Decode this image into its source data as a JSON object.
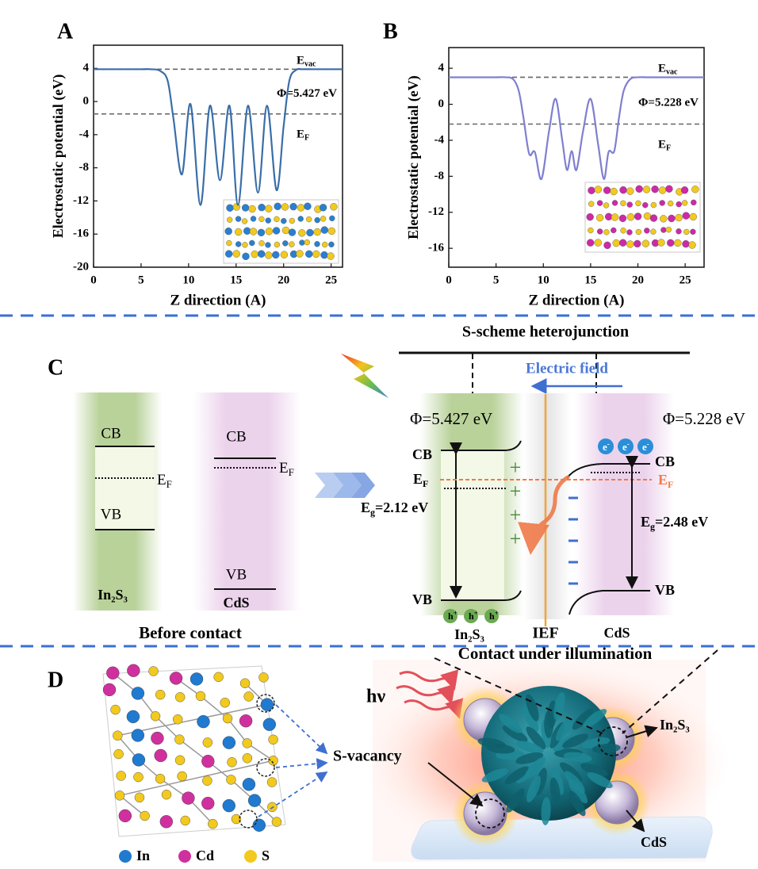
{
  "panel_labels": [
    "A",
    "B",
    "C",
    "D"
  ],
  "chart_data": [
    {
      "type": "line",
      "x_label": "Z direction (A)",
      "y_label": "Electrostatic potential (eV)",
      "x": [
        0,
        1,
        2,
        3,
        4,
        5,
        6,
        7,
        7.8,
        8.4,
        9.3,
        10.2,
        11.25,
        12.25,
        13.3,
        14.3,
        15.2,
        16.25,
        17.3,
        18.25,
        19.25,
        20,
        20.6,
        21.3,
        22,
        23,
        24,
        25,
        26.2
      ],
      "values": [
        3.9,
        3.9,
        3.9,
        3.9,
        3.9,
        3.9,
        3.9,
        3.7,
        2.5,
        -2,
        -8.8,
        -0.3,
        -12.5,
        -0.5,
        -9.5,
        -0.5,
        -12.5,
        -0.5,
        -11,
        -0.5,
        -10.7,
        -3,
        2.5,
        3.8,
        3.9,
        3.9,
        3.9,
        3.9,
        3.9
      ],
      "color": "#3a6ea8",
      "xlim": [
        0,
        26.2
      ],
      "ylim": [
        -20,
        6.8
      ],
      "xticks": [
        0,
        5,
        10,
        15,
        20,
        25
      ],
      "yticks": [
        -20,
        -16,
        -12,
        -8,
        -4,
        0,
        4
      ],
      "reference_lines": [
        {
          "value": 3.9,
          "label": {
            "base": "E",
            "sub": "vac"
          }
        },
        {
          "value": -1.5,
          "label": {
            "base": "E",
            "sub": "F"
          }
        }
      ],
      "annotation": "Φ=5.427 eV"
    },
    {
      "type": "line",
      "x_label": "Z direction (A)",
      "y_label": "Electrostatic potential (eV)",
      "x": [
        0,
        1,
        2,
        3,
        4,
        5,
        6,
        6.8,
        7.4,
        7.9,
        8.5,
        9.1,
        9.8,
        10.6,
        11.3,
        12,
        12.5,
        13,
        13.5,
        14.2,
        15,
        15.8,
        16.4,
        16.9,
        17.5,
        18,
        18.5,
        19.2,
        20,
        21,
        22,
        23,
        24,
        25,
        26,
        27
      ],
      "values": [
        3,
        3,
        3,
        3,
        3,
        3,
        3,
        2.8,
        1.5,
        -1.5,
        -5.5,
        -5.3,
        -8.3,
        -3,
        0.6,
        -4,
        -7.3,
        -5.2,
        -7.3,
        -3,
        0.6,
        -4.5,
        -8.3,
        -5.3,
        -5.2,
        -1.5,
        1.5,
        2.8,
        3,
        3,
        3,
        3,
        3,
        3,
        3,
        3
      ],
      "color": "#7f7fd0",
      "xlim": [
        0,
        27
      ],
      "ylim": [
        -18.1,
        6.3
      ],
      "xticks": [
        0,
        5,
        10,
        15,
        20,
        25
      ],
      "yticks": [
        -16,
        -12,
        -8,
        -4,
        0,
        4
      ],
      "reference_lines": [
        {
          "value": 3,
          "label": {
            "base": "E",
            "sub": "vac"
          }
        },
        {
          "value": -2.2,
          "label": {
            "base": "E",
            "sub": "F"
          }
        }
      ],
      "annotation": "Φ=5.228 eV"
    }
  ],
  "diagram_c": {
    "title": "S-scheme heterojunction",
    "electric_field": "Electric field",
    "before": {
      "caption": "Before contact",
      "in2s3": {
        "cb": "CB",
        "vb": "VB",
        "ef": {
          "base": "E",
          "sub": "F"
        },
        "label": "In₂S₃"
      },
      "cds": {
        "cb": "CB",
        "vb": "VB",
        "ef": {
          "base": "E",
          "sub": "F"
        },
        "label": "CdS"
      }
    },
    "after": {
      "caption": "Contact under illumination",
      "phi_left": "Φ=5.427 eV",
      "phi_right": "Φ=5.228 eV",
      "cb_left": "CB",
      "vb_left": "VB",
      "ef_left": {
        "base": "E",
        "sub": "F"
      },
      "eg_left": {
        "base": "E",
        "sub": "g",
        "rest": "=2.12 eV"
      },
      "cb_right": "CB",
      "vb_right": "VB",
      "ef_right": {
        "base": "E",
        "sub": "F"
      },
      "eg_right": {
        "base": "E",
        "sub": "g",
        "rest": "=2.48 eV"
      },
      "holes": [
        {
          "base": "h",
          "sup": "+"
        },
        {
          "base": "h",
          "sup": "+"
        },
        {
          "base": "h",
          "sup": "+"
        }
      ],
      "electrons": [
        {
          "base": "e",
          "sup": "-"
        },
        {
          "base": "e",
          "sup": "-"
        },
        {
          "base": "e",
          "sup": "-"
        }
      ],
      "label_left": "In₂S₃",
      "label_mid": "IEF",
      "label_right": "CdS"
    }
  },
  "diagram_d": {
    "legend": [
      "In",
      "Cd",
      "S"
    ],
    "light": "hν",
    "vacancy": "S-vacancy",
    "in2s3": "In₂S₃",
    "cds": "CdS"
  }
}
